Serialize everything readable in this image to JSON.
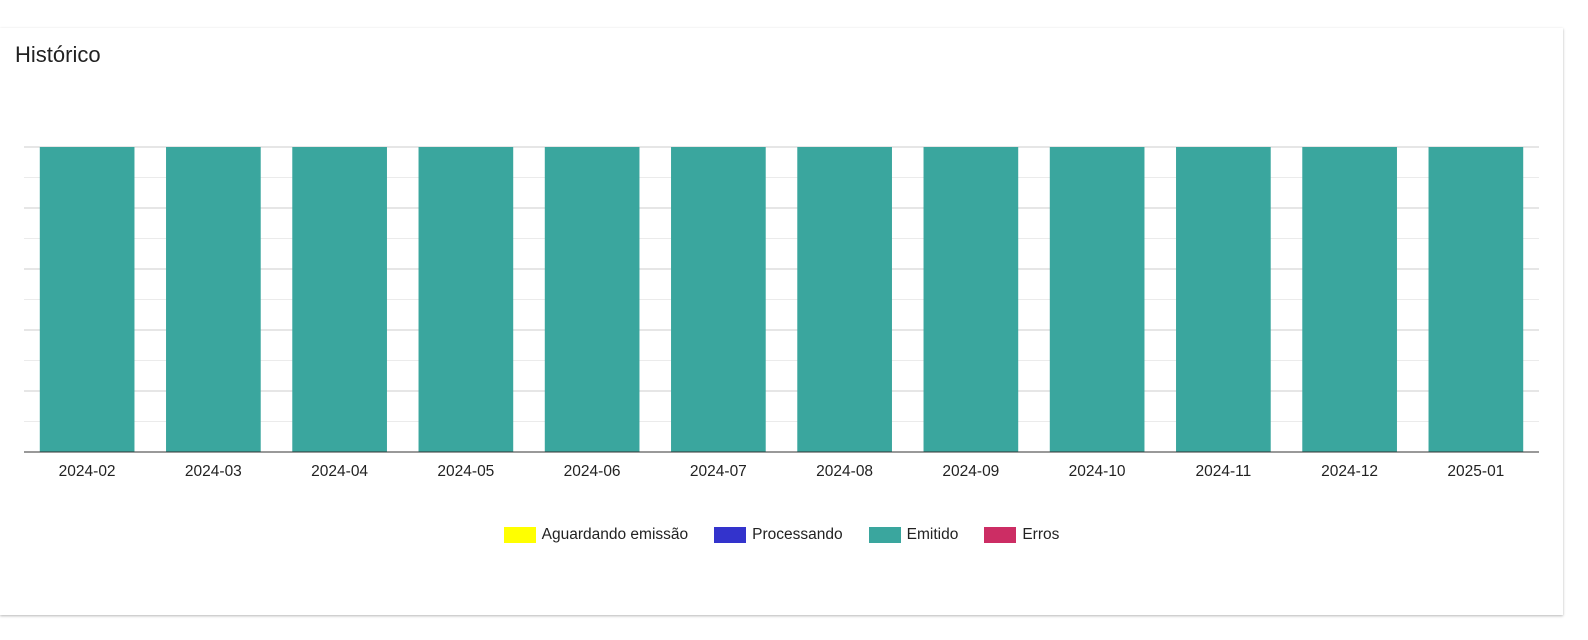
{
  "card": {
    "title": "Histórico"
  },
  "chart_data": {
    "type": "bar",
    "stacked": true,
    "categories": [
      "2024-02",
      "2024-03",
      "2024-04",
      "2024-05",
      "2024-06",
      "2024-07",
      "2024-08",
      "2024-09",
      "2024-10",
      "2024-11",
      "2024-12",
      "2025-01"
    ],
    "series": [
      {
        "name": "Aguardando emissão",
        "color": "#ffff00",
        "values": [
          0,
          0,
          0,
          0,
          0,
          0,
          0,
          0,
          0,
          0,
          0,
          0
        ]
      },
      {
        "name": "Processando",
        "color": "#3333cc",
        "values": [
          0,
          0,
          0,
          0,
          0,
          0,
          0,
          0,
          0,
          0,
          0,
          0
        ]
      },
      {
        "name": "Emitido",
        "color": "#3aa69e",
        "values": [
          1,
          1,
          1,
          1,
          1,
          1,
          1,
          1,
          1,
          1,
          1,
          1
        ]
      },
      {
        "name": "Erros",
        "color": "#cc2d64",
        "values": [
          0,
          0,
          0,
          0,
          0,
          0,
          0,
          0,
          0,
          0,
          0,
          0
        ]
      }
    ],
    "ylim": [
      0,
      1
    ],
    "y_axis_labels_visible": false,
    "grid": true,
    "legend_position": "bottom",
    "title": "",
    "xlabel": "",
    "ylabel": ""
  }
}
